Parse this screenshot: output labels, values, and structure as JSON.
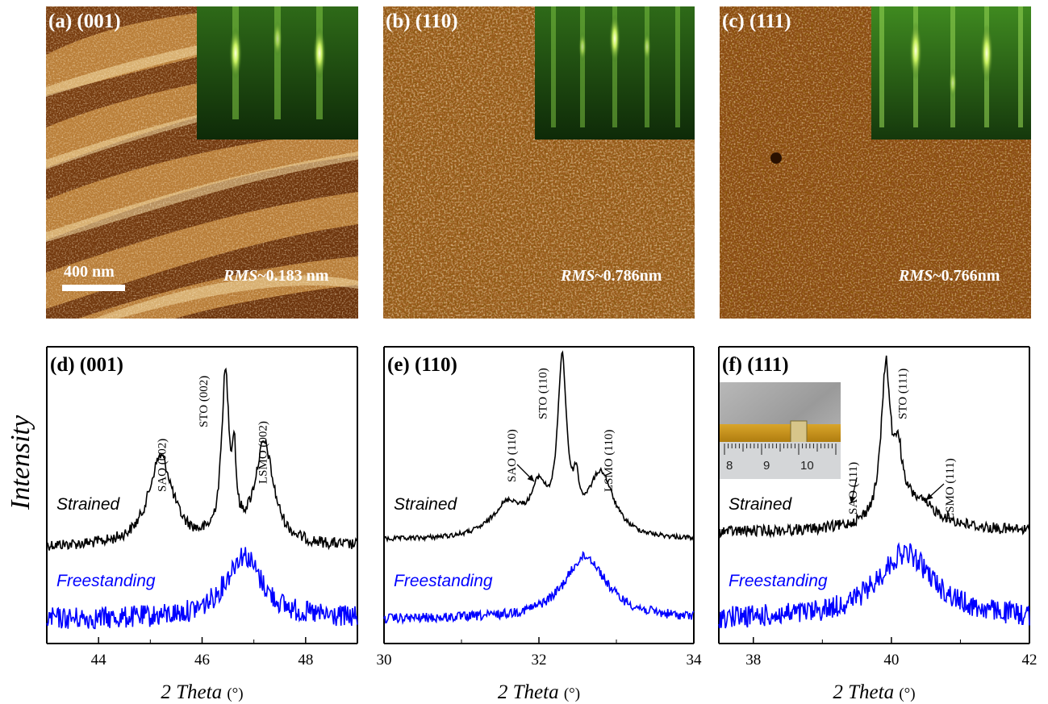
{
  "afm_panels": [
    {
      "label": "(a) (001)",
      "rms_prefix": "RMS",
      "rms_value": "~0.183 nm",
      "scale_label": "400 nm"
    },
    {
      "label": "(b) (110)",
      "rms_prefix": "RMS",
      "rms_value": "~0.786nm"
    },
    {
      "label": "(c) (111)",
      "rms_prefix": "RMS",
      "rms_value": "~0.766nm"
    }
  ],
  "y_axis_label": "Intensity",
  "colors": {
    "strained": "#000000",
    "freestanding": "#0000ff",
    "afm_dark": "#5a2c08",
    "afm_light": "#f2d9a0",
    "rheed": "#2f6a14"
  },
  "chart_data": [
    {
      "type": "line",
      "panel_label": "(d) (001)",
      "xlabel_main": "2 Theta",
      "xlabel_unit": "(°)",
      "xlim": [
        43,
        49
      ],
      "xticks": [
        44,
        46,
        48
      ],
      "series": [
        {
          "name": "Strained",
          "peaks": [
            [
              45.2,
              0.28,
              0.55
            ],
            [
              46.45,
              0.09,
              1.0
            ],
            [
              46.62,
              0.04,
              0.42
            ],
            [
              47.2,
              0.22,
              0.62
            ]
          ],
          "baseline": 0.06
        },
        {
          "name": "Freestanding",
          "peaks": [
            [
              46.8,
              0.42,
              1.0
            ]
          ],
          "baseline": 0.05
        }
      ],
      "annotations": [
        {
          "text": "SAO (002)",
          "x": 45.3
        },
        {
          "text": "STO (002)",
          "x": 46.1
        },
        {
          "text": "LSMO (002)",
          "x": 47.25
        }
      ]
    },
    {
      "type": "line",
      "panel_label": "(e) (110)",
      "xlabel_main": "2 Theta",
      "xlabel_unit": "(°)",
      "xlim": [
        30,
        34
      ],
      "xticks": [
        30,
        32,
        34
      ],
      "series": [
        {
          "name": "Strained",
          "peaks": [
            [
              31.6,
              0.25,
              0.2
            ],
            [
              32.0,
              0.12,
              0.25
            ],
            [
              32.3,
              0.07,
              1.0
            ],
            [
              32.48,
              0.04,
              0.2
            ],
            [
              32.8,
              0.2,
              0.38
            ]
          ],
          "baseline": 0.02
        },
        {
          "name": "Freestanding",
          "peaks": [
            [
              32.6,
              0.33,
              1.0
            ]
          ],
          "baseline": 0.05
        }
      ],
      "annotations": [
        {
          "text": "SAO (110)",
          "x": 31.7
        },
        {
          "text": "STO (110)",
          "x": 32.1
        },
        {
          "text": "LSMO (110)",
          "x": 32.95
        }
      ]
    },
    {
      "type": "line",
      "panel_label": "(f) (111)",
      "xlabel_main": "2 Theta",
      "xlabel_unit": "(°)",
      "xlim": [
        37.5,
        42
      ],
      "xticks": [
        38,
        40,
        42
      ],
      "series": [
        {
          "name": "Strained",
          "peaks": [
            [
              39.92,
              0.08,
              1.0
            ],
            [
              40.1,
              0.06,
              0.35
            ],
            [
              40.3,
              0.45,
              0.2
            ]
          ],
          "baseline": 0.07
        },
        {
          "name": "Freestanding",
          "peaks": [
            [
              40.2,
              0.5,
              1.0
            ]
          ],
          "baseline": 0.05
        }
      ],
      "annotations": [
        {
          "text": "SAO (111)",
          "x": 39.5
        },
        {
          "text": "STO (111)",
          "x": 40.22
        },
        {
          "text": "LSMO (111)",
          "x": 40.9
        }
      ],
      "photo_tick_labels": [
        "8",
        "9",
        "10"
      ]
    }
  ]
}
